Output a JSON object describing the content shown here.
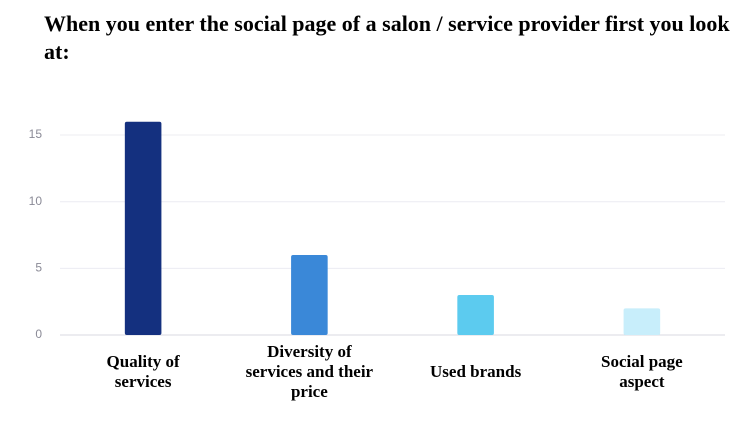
{
  "chart_data": {
    "type": "bar",
    "title": "When you enter the social page of a salon / service provider first you look at:",
    "categories": [
      "Quality of services",
      "Diversity of services and their price",
      "Used brands",
      "Social page aspect"
    ],
    "values": [
      16,
      6,
      3,
      2
    ],
    "colors": [
      "#14307f",
      "#3a88d8",
      "#5ccbef",
      "#c8eefb"
    ],
    "ylim": [
      0,
      16
    ],
    "yticks": [
      0,
      5,
      10,
      15
    ],
    "grid": true
  }
}
